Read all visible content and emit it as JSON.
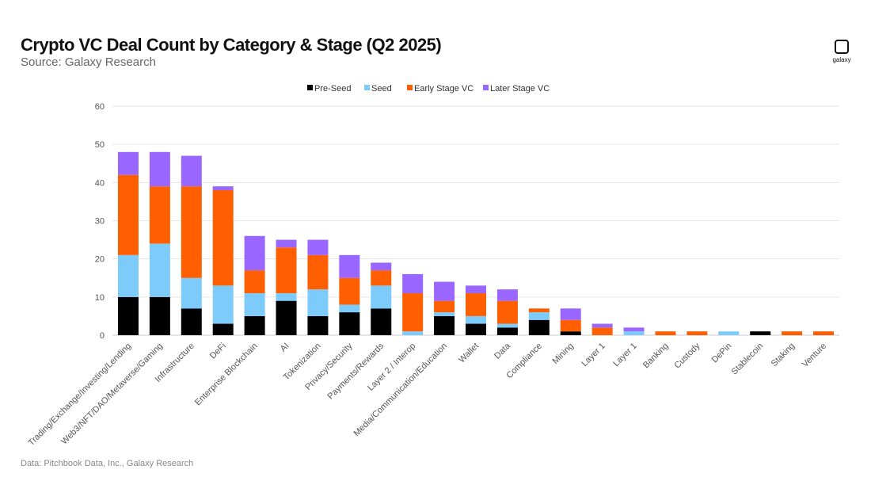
{
  "header": {
    "title": "Crypto VC Deal Count by Category & Stage (Q2 2025)",
    "subtitle": "Source: Galaxy Research"
  },
  "footer": {
    "text": "Data: Pitchbook Data, Inc., Galaxy Research"
  },
  "logo": {
    "text": "galaxy"
  },
  "chart_data": {
    "type": "bar",
    "stacked": true,
    "title": "Crypto VC Deal Count by Category & Stage (Q2 2025)",
    "xlabel": "",
    "ylabel": "",
    "ylim": [
      0,
      60
    ],
    "yticks": [
      0,
      10,
      20,
      30,
      40,
      50,
      60
    ],
    "grid": true,
    "legend_position": "top",
    "categories": [
      "Trading/Exchange/Investing/Lending",
      "Web3/NFT/DAO/Metaverse/Gaming",
      "Infrastructure",
      "DeFi",
      "Enterprise Blockchain",
      "AI",
      "Tokenization",
      "Privacy/Security",
      "Payments/Rewards",
      "Layer 2 / Interop",
      "Media/Communication/Education",
      "Wallet",
      "Data",
      "Compliance",
      "Mining",
      "Layer 1",
      "Layer 1",
      "Banking",
      "Custody",
      "DePin",
      "Stablecoin",
      "Staking",
      "Venture"
    ],
    "series": [
      {
        "name": "Pre-Seed",
        "color": "#000000",
        "values": [
          10,
          10,
          7,
          3,
          5,
          9,
          5,
          6,
          7,
          0,
          5,
          3,
          2,
          4,
          1,
          0,
          0,
          0,
          0,
          0,
          1,
          0,
          0
        ]
      },
      {
        "name": "Seed",
        "color": "#7ccbfa",
        "values": [
          11,
          14,
          8,
          10,
          6,
          2,
          7,
          2,
          6,
          1,
          1,
          2,
          1,
          2,
          0,
          0,
          1,
          0,
          0,
          1,
          0,
          0,
          0
        ]
      },
      {
        "name": "Early Stage VC",
        "color": "#ff5f00",
        "values": [
          21,
          15,
          24,
          25,
          6,
          12,
          9,
          7,
          4,
          10,
          3,
          6,
          6,
          1,
          3,
          2,
          0,
          1,
          1,
          0,
          0,
          1,
          1
        ]
      },
      {
        "name": "Later Stage VC",
        "color": "#9966ff",
        "values": [
          6,
          9,
          8,
          1,
          9,
          2,
          4,
          6,
          2,
          5,
          5,
          2,
          3,
          0,
          3,
          1,
          1,
          0,
          0,
          0,
          0,
          0,
          0
        ]
      }
    ]
  }
}
